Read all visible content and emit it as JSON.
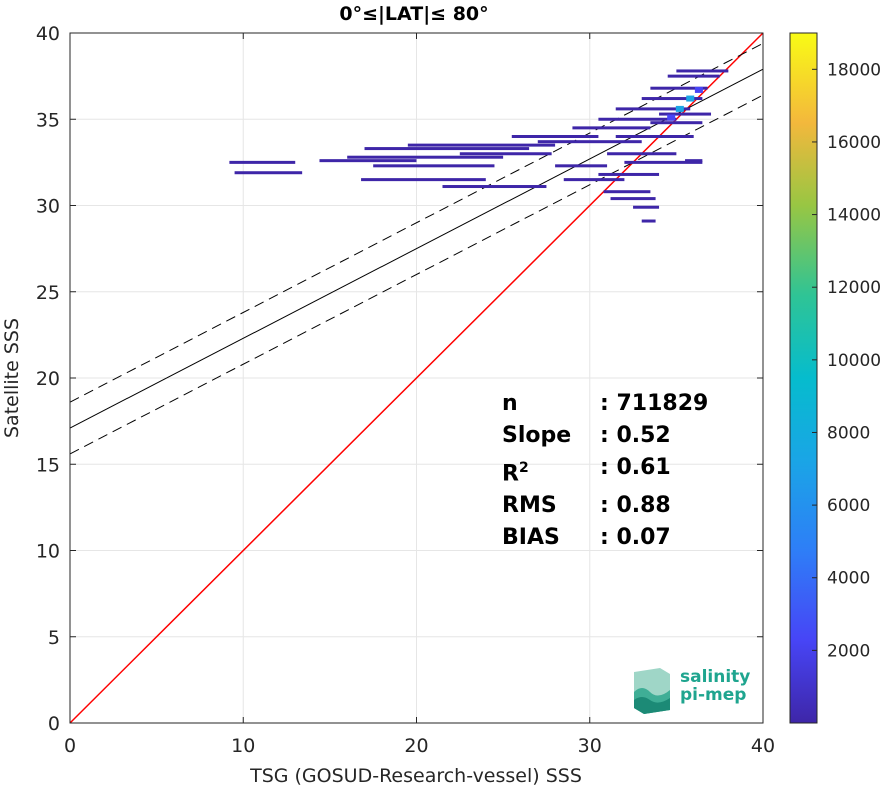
{
  "chart_data": {
    "type": "scatter",
    "subtype": "2d-density-histogram",
    "title": "0°≤|LAT|≤ 80°",
    "xlabel": "TSG (GOSUD-Research-vessel) SSS",
    "ylabel": "Satellite SSS",
    "xlim": [
      0,
      40
    ],
    "ylim": [
      0,
      40
    ],
    "xticks": [
      0,
      10,
      20,
      30,
      40
    ],
    "yticks": [
      0,
      5,
      10,
      15,
      20,
      25,
      30,
      35,
      40
    ],
    "grid": true,
    "lines": [
      {
        "role": "identity",
        "color": "#ff0000",
        "x": [
          0,
          40
        ],
        "y": [
          0,
          40
        ]
      },
      {
        "role": "regression",
        "color": "#000000",
        "style": "solid",
        "x": [
          0,
          40
        ],
        "y": [
          17.1,
          37.9
        ]
      },
      {
        "role": "regression-upper",
        "color": "#000000",
        "style": "dashed",
        "x": [
          0,
          40
        ],
        "y": [
          18.6,
          39.4
        ]
      },
      {
        "role": "regression-lower",
        "color": "#000000",
        "style": "dashed",
        "x": [
          0,
          40
        ],
        "y": [
          15.6,
          36.4
        ]
      }
    ],
    "density_segments": [
      {
        "x": [
          9.2,
          13.0
        ],
        "y": 32.5
      },
      {
        "x": [
          9.5,
          13.4
        ],
        "y": 31.9
      },
      {
        "x": [
          14.4,
          20.0
        ],
        "y": 32.6
      },
      {
        "x": [
          16.0,
          25.0
        ],
        "y": 32.8
      },
      {
        "x": [
          17.5,
          24.5
        ],
        "y": 32.3
      },
      {
        "x": [
          17.0,
          26.5
        ],
        "y": 33.3
      },
      {
        "x": [
          19.5,
          28.0
        ],
        "y": 33.5
      },
      {
        "x": [
          16.8,
          24.0
        ],
        "y": 31.5
      },
      {
        "x": [
          21.5,
          27.5
        ],
        "y": 31.1
      },
      {
        "x": [
          22.5,
          27.8
        ],
        "y": 33.0
      },
      {
        "x": [
          25.5,
          30.5
        ],
        "y": 34.0
      },
      {
        "x": [
          27.0,
          33.0
        ],
        "y": 33.7
      },
      {
        "x": [
          28.0,
          31.0
        ],
        "y": 32.3
      },
      {
        "x": [
          28.5,
          32.0
        ],
        "y": 31.5
      },
      {
        "x": [
          29.0,
          33.5
        ],
        "y": 34.5
      },
      {
        "x": [
          30.5,
          35.0
        ],
        "y": 35.0
      },
      {
        "x": [
          31.5,
          35.8
        ],
        "y": 35.6
      },
      {
        "x": [
          33.0,
          36.5
        ],
        "y": 36.2
      },
      {
        "x": [
          33.5,
          36.8
        ],
        "y": 36.8
      },
      {
        "x": [
          34.5,
          37.5
        ],
        "y": 37.5
      },
      {
        "x": [
          35.0,
          38.0
        ],
        "y": 37.8
      },
      {
        "x": [
          30.8,
          33.5
        ],
        "y": 30.8
      },
      {
        "x": [
          31.2,
          33.8
        ],
        "y": 30.4
      },
      {
        "x": [
          31.0,
          35.0
        ],
        "y": 33.0
      },
      {
        "x": [
          31.5,
          36.0
        ],
        "y": 34.0
      },
      {
        "x": [
          32.0,
          36.5
        ],
        "y": 32.5
      },
      {
        "x": [
          30.5,
          34.0
        ],
        "y": 31.8
      },
      {
        "x": [
          32.5,
          34.0
        ],
        "y": 29.9
      },
      {
        "x": [
          33.0,
          33.8
        ],
        "y": 29.1
      },
      {
        "x": [
          33.5,
          36.5
        ],
        "y": 34.8
      },
      {
        "x": [
          34.0,
          37.0
        ],
        "y": 35.3
      },
      {
        "x": [
          35.5,
          36.5
        ],
        "y": 32.6
      }
    ],
    "density_hotspots": [
      {
        "x": 35.2,
        "y": 35.6,
        "count": 8000
      },
      {
        "x": 35.8,
        "y": 36.2,
        "count": 6000
      },
      {
        "x": 34.7,
        "y": 35.1,
        "count": 3500
      },
      {
        "x": 36.3,
        "y": 36.7,
        "count": 3000
      }
    ],
    "colorbar": {
      "colormap": "parula",
      "range": [
        0,
        19000
      ],
      "ticks": [
        2000,
        4000,
        6000,
        8000,
        10000,
        12000,
        14000,
        16000,
        18000
      ],
      "tick_labels": [
        "2000",
        "4000",
        "6000",
        "8000",
        "10000",
        "12000",
        "14000",
        "16000",
        "18000"
      ]
    },
    "annotations": [
      {
        "key": "n",
        "value": ": 711829"
      },
      {
        "key": "Slope",
        "value": ": 0.52"
      },
      {
        "key": "R",
        "sup": "2",
        "value": ": 0.61"
      },
      {
        "key": "RMS",
        "value": ": 0.88"
      },
      {
        "key": "BIAS",
        "value": ": 0.07"
      }
    ]
  },
  "logo": {
    "line1": "salinity",
    "line2": "pi-mep"
  },
  "colors": {
    "identity": "#ff0000",
    "regression": "#000000",
    "logo_teal": "#1fa58f",
    "density_low": "#3e26a8"
  }
}
